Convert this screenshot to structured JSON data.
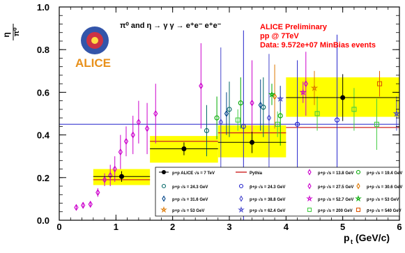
{
  "chart_data": {
    "type": "scatter",
    "title": "",
    "process_label": "π⁰ and η → γ γ → e⁺e⁻ e⁺e⁻",
    "ylabel_num": "η",
    "ylabel_den": "π⁰",
    "xlabel": "p",
    "xlabel_sub": "t",
    "xlabel_unit": "(GeV/c)",
    "xlim": [
      0,
      6
    ],
    "ylim": [
      0,
      1
    ],
    "x_ticks": [
      "0",
      "1",
      "2",
      "3",
      "4",
      "5",
      "6"
    ],
    "y_ticks": [
      "0.0",
      "0.2",
      "0.4",
      "0.6",
      "0.8",
      "1.0"
    ],
    "logo_text": "ALICE",
    "annotation": [
      "ALICE Preliminary",
      "pp @ 7TeV",
      "Data: 9.572e+07  MinBias events"
    ],
    "reference_line": 0.45,
    "colors": {
      "alice": "#000000",
      "syst_band": "#ffff00",
      "pythia": "#cc2222",
      "ref_line": "#2222cc",
      "annotation": "#ff0000"
    },
    "alice_points": [
      {
        "x": 1.1,
        "y": 0.205,
        "xerr": 0.5,
        "yerr": 0.025,
        "band_x": [
          0.6,
          1.6
        ],
        "band_y": [
          0.165,
          0.24
        ]
      },
      {
        "x": 2.2,
        "y": 0.335,
        "xerr": 0.6,
        "yerr": 0.03,
        "band_x": [
          1.6,
          2.8
        ],
        "band_y": [
          0.27,
          0.395
        ]
      },
      {
        "x": 3.4,
        "y": 0.365,
        "xerr": 0.6,
        "yerr": 0.05,
        "band_x": [
          2.8,
          4.0
        ],
        "band_y": [
          0.295,
          0.445
        ]
      },
      {
        "x": 5.0,
        "y": 0.575,
        "xerr": 1.0,
        "yerr": 0.11,
        "band_x": [
          4.0,
          6.0
        ],
        "band_y": [
          0.485,
          0.67
        ]
      }
    ],
    "pythia": [
      {
        "x": [
          0.6,
          1.6
        ],
        "y": 0.19
      },
      {
        "x": [
          1.6,
          2.8
        ],
        "y": 0.37
      },
      {
        "x": [
          2.8,
          4.0
        ],
        "y": 0.41
      },
      {
        "x": [
          4.0,
          6.0
        ],
        "y": 0.435
      }
    ],
    "series": [
      {
        "name": "p+p √s = 13.8 GeV",
        "color": "#cc00cc",
        "marker": "diamond-open",
        "points": [
          [
            0.3,
            0.06,
            0.01
          ],
          [
            0.42,
            0.07,
            0.015
          ],
          [
            0.55,
            0.075,
            0.015
          ],
          [
            0.68,
            0.13,
            0.02
          ],
          [
            0.8,
            0.19,
            0.03
          ],
          [
            0.9,
            0.21,
            0.05
          ],
          [
            0.98,
            0.24,
            0.06
          ],
          [
            1.08,
            0.32,
            0.08
          ],
          [
            1.18,
            0.37,
            0.07
          ],
          [
            1.3,
            0.4,
            0.09
          ],
          [
            1.4,
            0.46,
            0.1
          ],
          [
            1.55,
            0.43,
            0.12
          ],
          [
            1.7,
            0.5,
            0.14
          ],
          [
            2.5,
            0.63,
            0.2
          ]
        ]
      },
      {
        "name": "p+p √s = 19.4 GeV",
        "color": "#00aa00",
        "marker": "circle-open",
        "points": [
          [
            2.78,
            0.48,
            0.1
          ],
          [
            3.2,
            0.55,
            0.12
          ],
          [
            3.9,
            0.49,
            0.14
          ]
        ]
      },
      {
        "name": "p+p √s = 24.3 GeV",
        "color": "#006666",
        "marker": "circle-open",
        "points": [
          [
            2.6,
            0.42,
            0.12
          ],
          [
            3.0,
            0.52,
            0.13
          ],
          [
            3.6,
            0.53,
            0.14
          ]
        ]
      },
      {
        "name": "p̄+p √s = 24.3 GeV",
        "color": "#2222cc",
        "marker": "circle-open",
        "points": [
          [
            3.25,
            0.44,
            0.45
          ],
          [
            4.2,
            0.45,
            0.3
          ],
          [
            4.9,
            0.47,
            0.4
          ]
        ]
      },
      {
        "name": "p+p √s = 27.5 GeV",
        "color": "#cc00cc",
        "marker": "diamond-open",
        "points": [
          [
            3.4,
            0.55,
            0.2
          ],
          [
            4.35,
            0.64,
            0.15
          ]
        ]
      },
      {
        "name": "p+p √s = 30.6 GeV",
        "color": "#dd7700",
        "marker": "diamond-open",
        "points": [
          [
            3.8,
            0.58,
            0.15
          ]
        ]
      },
      {
        "name": "p+p √s = 31.6 GeV",
        "color": "#004488",
        "marker": "diamond-open",
        "points": [
          [
            2.95,
            0.5,
            0.1
          ],
          [
            3.55,
            0.54,
            0.12
          ]
        ]
      },
      {
        "name": "p+p √s = 38.8 GeV",
        "color": "#4444cc",
        "marker": "diamond-open",
        "points": [
          [
            2.85,
            0.46,
            0.35
          ],
          [
            3.7,
            0.48,
            0.3
          ]
        ]
      },
      {
        "name": "p+p √s = 52.7 GeV",
        "color": "#cc00cc",
        "marker": "star",
        "points": [
          [
            4.3,
            0.6,
            0.05
          ]
        ]
      },
      {
        "name": "p+p √s = 53 GeV",
        "color": "#00aa00",
        "marker": "star",
        "points": [
          [
            3.75,
            0.59,
            0.05
          ]
        ]
      },
      {
        "name": "p+p √s = 53 GeV",
        "color": "#dd7700",
        "marker": "star",
        "points": [
          [
            4.5,
            0.62,
            0.08
          ]
        ]
      },
      {
        "name": "p+p √s = 62.4 GeV",
        "color": "#4444cc",
        "marker": "star",
        "points": [
          [
            3.9,
            0.57,
            0.06
          ],
          [
            5.95,
            0.5,
            0.08
          ]
        ]
      },
      {
        "name": "p+p √s = 200 GeV",
        "color": "#44cc44",
        "marker": "square-open",
        "points": [
          [
            3.15,
            0.47,
            0.05
          ],
          [
            3.85,
            0.45,
            0.06
          ],
          [
            4.55,
            0.5,
            0.08
          ],
          [
            5.2,
            0.52,
            0.1
          ],
          [
            5.6,
            0.45,
            0.12
          ]
        ]
      },
      {
        "name": "p̄+p √s = 540 GeV",
        "color": "#dd5500",
        "marker": "square-open",
        "points": [
          [
            5.65,
            0.64,
            0.06
          ]
        ]
      }
    ],
    "legend": [
      {
        "label": "p+p ALICE √s = 7 TeV",
        "color": "#000000",
        "marker": "dot"
      },
      {
        "label": "Pythia",
        "color": "#cc2222",
        "marker": "line"
      },
      {
        "label": "p+p √s = 13.8 GeV",
        "color": "#cc00cc",
        "marker": "diamond-open"
      },
      {
        "label": "p+p √s = 19.4 GeV",
        "color": "#00aa00",
        "marker": "circle-open"
      },
      {
        "label": "p+p √s = 24.3 GeV",
        "color": "#006666",
        "marker": "circle-open"
      },
      {
        "label": "p̄+p √s = 24.3 GeV",
        "color": "#2222cc",
        "marker": "circle-open"
      },
      {
        "label": "p+p √s = 27.5 GeV",
        "color": "#cc00cc",
        "marker": "diamond-open"
      },
      {
        "label": "p+p √s = 30.6 GeV",
        "color": "#dd7700",
        "marker": "diamond-open"
      },
      {
        "label": "p+p √s = 31.6 GeV",
        "color": "#004488",
        "marker": "diamond-open"
      },
      {
        "label": "p+p √s = 38.8 GeV",
        "color": "#4444cc",
        "marker": "diamond-open"
      },
      {
        "label": "p+p √s = 52.7 GeV",
        "color": "#cc00cc",
        "marker": "star"
      },
      {
        "label": "p+p √s = 53 GeV",
        "color": "#00aa00",
        "marker": "star"
      },
      {
        "label": "p+p √s = 53 GeV",
        "color": "#dd7700",
        "marker": "star"
      },
      {
        "label": "p+p √s = 62.4 GeV",
        "color": "#4444cc",
        "marker": "star"
      },
      {
        "label": "p+p √s = 200 GeV",
        "color": "#44cc44",
        "marker": "square-open"
      },
      {
        "label": "p̄+p √s = 540 GeV",
        "color": "#dd5500",
        "marker": "square-open"
      }
    ]
  }
}
